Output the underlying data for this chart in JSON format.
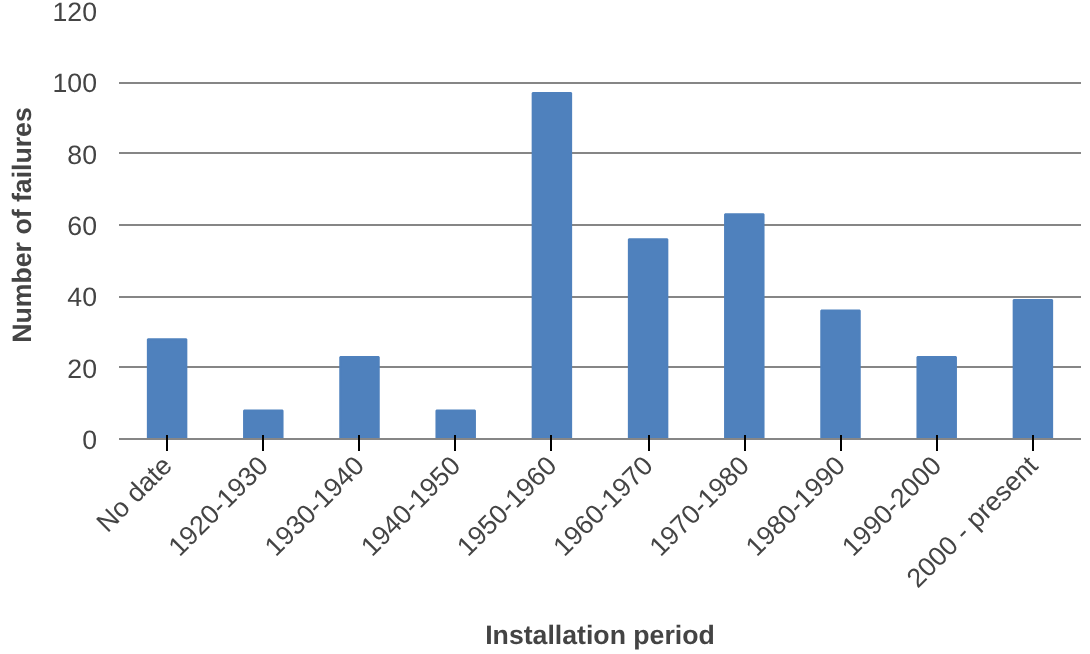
{
  "chart_data": {
    "type": "bar",
    "xlabel": "Installation period",
    "ylabel": "Number of failures",
    "categories": [
      "No date",
      "1920-1930",
      "1930-1940",
      "1940-1950",
      "1950-1960",
      "1960-1970",
      "1970-1980",
      "1980-1990",
      "1990-2000",
      "2000 - present"
    ],
    "values": [
      28,
      8,
      23,
      8,
      97,
      56,
      63,
      36,
      23,
      39
    ],
    "color": "#4f81bd",
    "ylim": [
      0,
      120
    ],
    "yticks": [
      0,
      20,
      40,
      60,
      80,
      100,
      120
    ],
    "grid": "y"
  }
}
